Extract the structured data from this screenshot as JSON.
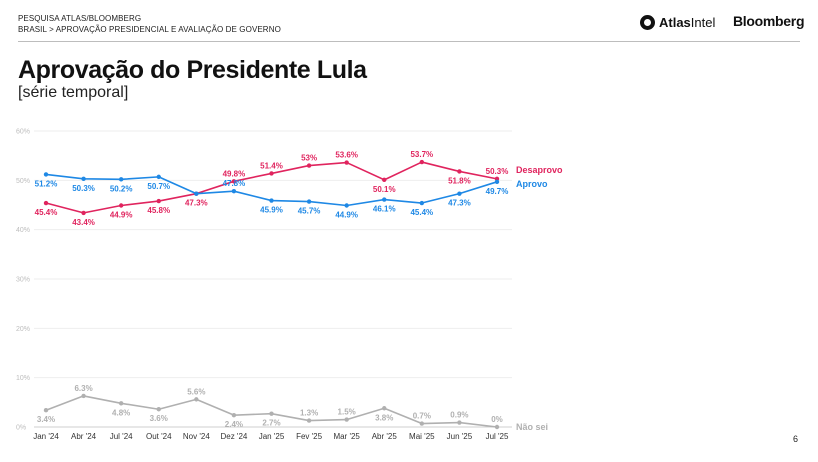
{
  "header": {
    "line1": "PESQUISA ATLAS/BLOOMBERG",
    "line2": "BRASIL > APROVAÇÃO PRESIDENCIAL E AVALIAÇÃO DE GOVERNO",
    "logo_atlas_bold": "Atlas",
    "logo_atlas_rest": "Intel",
    "logo_bloomberg": "Bloomberg"
  },
  "title": "Aprovação do Presidente Lula",
  "subtitle": "[série temporal]",
  "page_number": "6",
  "colors": {
    "desaprovo": "#e0245e",
    "aprovo": "#1e88e5",
    "nao_sei": "#b0b0b0",
    "grid": "#eeeeee"
  },
  "chart_data": {
    "type": "line",
    "title": "Aprovação do Presidente Lula",
    "subtitle": "[série temporal]",
    "categories": [
      "Jan '24",
      "Abr '24",
      "Jul '24",
      "Out '24",
      "Nov '24",
      "Dez '24",
      "Jan '25",
      "Fev '25",
      "Mar '25",
      "Abr '25",
      "Mai '25",
      "Jun '25",
      "Jul '25"
    ],
    "ylim": [
      0,
      60
    ],
    "yticks": [
      "0%",
      "10%",
      "20%",
      "30%",
      "40%",
      "50%",
      "60%"
    ],
    "grid": true,
    "series": [
      {
        "name": "Desaprovo",
        "color": "#e0245e",
        "values": [
          45.4,
          43.4,
          44.9,
          45.8,
          47.3,
          49.8,
          51.4,
          53,
          53.6,
          50.1,
          53.7,
          51.8,
          50.3
        ],
        "labels": [
          "45.4%",
          "43.4%",
          "44.9%",
          "45.8%",
          "47.3%",
          "49.8%",
          "51.4%",
          "53%",
          "53.6%",
          "50.1%",
          "53.7%",
          "51.8%",
          "50.3%"
        ]
      },
      {
        "name": "Aprovo",
        "color": "#1e88e5",
        "values": [
          51.2,
          50.3,
          50.2,
          50.7,
          47.3,
          47.8,
          45.9,
          45.7,
          44.9,
          46.1,
          45.4,
          47.3,
          49.7
        ],
        "labels": [
          "51.2%",
          "50.3%",
          "50.2%",
          "50.7%",
          "",
          "47.8%",
          "45.9%",
          "45.7%",
          "44.9%",
          "46.1%",
          "45.4%",
          "47.3%",
          "49.7%"
        ]
      },
      {
        "name": "Não sei",
        "color": "#b0b0b0",
        "values": [
          3.4,
          6.3,
          4.8,
          3.6,
          5.6,
          2.4,
          2.7,
          1.3,
          1.5,
          3.8,
          0.7,
          0.9,
          0
        ],
        "labels": [
          "3.4%",
          "6.3%",
          "4.8%",
          "3.6%",
          "5.6%",
          "2.4%",
          "2.7%",
          "1.3%",
          "1.5%",
          "3.8%",
          "0.7%",
          "0.9%",
          "0%"
        ]
      }
    ]
  }
}
